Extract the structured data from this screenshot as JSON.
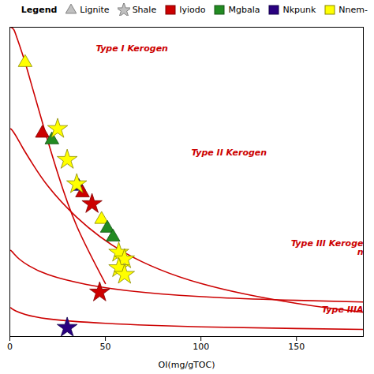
{
  "chart_data": {
    "type": "scatter",
    "xlabel": "OI(mg/gTOC)",
    "xlim": [
      0,
      185
    ],
    "ylim": [
      0,
      700
    ],
    "xticks": [
      0,
      50,
      100,
      150
    ],
    "tick_labels": "x",
    "grid": false,
    "legend": "upper right",
    "legend_title": "Legend",
    "series": [
      {
        "type": "line",
        "color": "#cc0000",
        "x": [
          0.5,
          1,
          2,
          3,
          5,
          8,
          12,
          18,
          25,
          35,
          50
        ],
        "values": [
          700,
          699,
          695,
          685,
          660,
          620,
          560,
          470,
          370,
          250,
          120
        ]
      },
      {
        "type": "line",
        "color": "#cc0000",
        "x": [
          0.5,
          1,
          2,
          4,
          7,
          12,
          20,
          35,
          60,
          100,
          150,
          185
        ],
        "values": [
          470,
          468,
          462,
          448,
          425,
          390,
          340,
          270,
          190,
          120,
          75,
          55
        ]
      },
      {
        "type": "line",
        "color": "#cc0000",
        "x": [
          0.5,
          1,
          2,
          5,
          10,
          20,
          40,
          70,
          110,
          150,
          185
        ],
        "values": [
          195,
          193,
          188,
          175,
          160,
          140,
          118,
          100,
          88,
          82,
          78
        ]
      },
      {
        "type": "line",
        "color": "#cc0000",
        "x": [
          0.5,
          1,
          3,
          8,
          20,
          50,
          100,
          150,
          185
        ],
        "values": [
          65,
          63,
          58,
          50,
          40,
          30,
          22,
          18,
          16
        ]
      },
      {
        "type": "scatter",
        "name": "Lignite",
        "marker": "triangle",
        "legend_color": "#c0c0c0",
        "legend_edge_color": "#808080",
        "x": [
          8,
          17,
          22,
          36,
          38,
          48,
          51,
          54
        ],
        "values": [
          620,
          460,
          445,
          340,
          325,
          265,
          245,
          225
        ],
        "colors": [
          "#ffff00",
          "#cc0000",
          "#228B22",
          "#2a0080",
          "#cc0000",
          "#ffff00",
          "#228B22",
          "#228B22"
        ],
        "edge_colors": [
          "#888800",
          "#800000",
          "#145214",
          "#10004a",
          "#800000",
          "#888800",
          "#145214",
          "#145214"
        ]
      },
      {
        "type": "scatter",
        "name": "Shale",
        "marker": "star",
        "legend_color": "#c0c0c0",
        "legend_edge_color": "#808080",
        "x": [
          25,
          30,
          35,
          43,
          57,
          60,
          57,
          60,
          47,
          30
        ],
        "values": [
          470,
          400,
          345,
          300,
          190,
          175,
          155,
          140,
          100,
          20
        ],
        "colors": [
          "#ffff00",
          "#ffff00",
          "#ffff00",
          "#cc0000",
          "#ffff00",
          "#ffff00",
          "#ffff00",
          "#ffff00",
          "#cc0000",
          "#2a0080"
        ],
        "edge_colors": [
          "#888800",
          "#888800",
          "#888800",
          "#800000",
          "#888800",
          "#888800",
          "#888800",
          "#888800",
          "#800000",
          "#10004a"
        ]
      }
    ],
    "color_keys": [
      {
        "name": "Iyiodo",
        "color": "#cc0000",
        "edge_color": "#800000"
      },
      {
        "name": "Mgbala",
        "color": "#228B22",
        "edge_color": "#145214"
      },
      {
        "name": "Nkpunk",
        "color": "#2a0080",
        "edge_color": "#10004a"
      },
      {
        "name": "Nnem-",
        "color": "#ffff00",
        "edge_color": "#888800"
      }
    ],
    "annotations": [
      {
        "text": "Type I Kerogen",
        "x": 45,
        "y": 645,
        "align": "left",
        "color": "#cc0000"
      },
      {
        "text": "Type II Kerogen",
        "x": 95,
        "y": 410,
        "align": "left",
        "color": "#cc0000"
      },
      {
        "text": "Type III Keroge\nn",
        "x": 185,
        "y": 185,
        "align": "right",
        "color": "#cc0000"
      },
      {
        "text": "Type IIIA",
        "x": 185,
        "y": 55,
        "align": "right",
        "color": "#cc0000"
      }
    ]
  }
}
